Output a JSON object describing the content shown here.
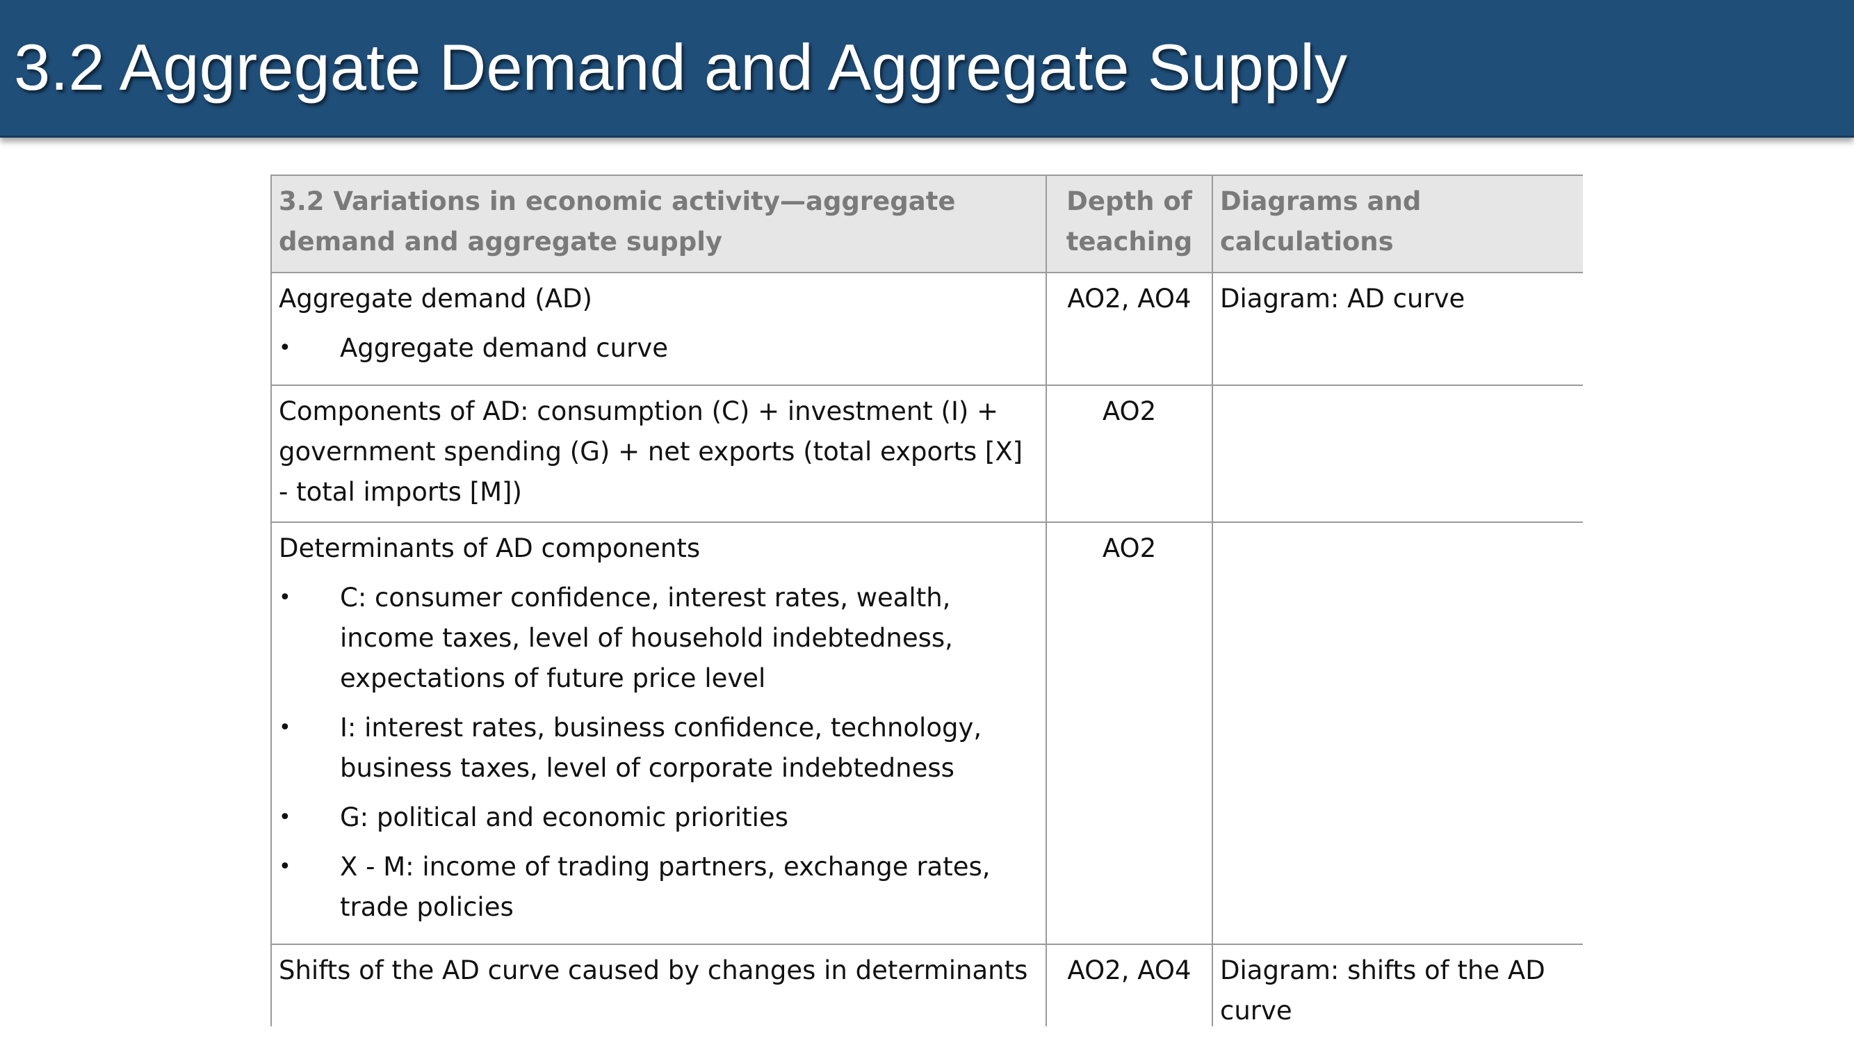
{
  "slide": {
    "title": "3.2 Aggregate Demand and Aggregate Supply"
  },
  "table": {
    "headers": [
      "3.2 Variations in economic activity—aggregate demand and aggregate supply",
      "Depth of teaching",
      "Diagrams and calculations"
    ],
    "rows": [
      {
        "topic": "Aggregate demand (AD)",
        "bullets": [
          "Aggregate demand curve"
        ],
        "depth": "AO2, AO4",
        "diagrams": "Diagram: AD curve"
      },
      {
        "topic": "Components of AD: consumption (C) + investment (I) + government spending (G) + net exports (total exports [X] - total imports [M])",
        "bullets": [],
        "depth": "AO2",
        "diagrams": ""
      },
      {
        "topic": "Determinants of AD components",
        "bullets": [
          "C: consumer confidence, interest rates, wealth, income taxes, level of household indebtedness, expectations of future price level",
          "I: interest rates, business confidence, technology, business taxes, level of corporate indebtedness",
          "G: political and economic priorities",
          "X - M: income of trading partners, exchange rates, trade policies"
        ],
        "depth": "AO2",
        "diagrams": ""
      },
      {
        "topic": "Shifts of the AD curve caused by changes in determinants",
        "bullets": [],
        "depth": "AO2, AO4",
        "diagrams": "Diagram: shifts of the AD curve"
      }
    ],
    "bullet_glyph": "•"
  }
}
